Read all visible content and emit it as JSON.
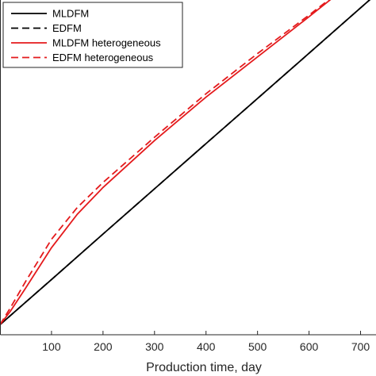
{
  "chart_data": {
    "type": "line",
    "title": "",
    "xlabel": "Production time, day",
    "ylabel": "",
    "xlim": [
      0,
      730
    ],
    "ylim": [
      0,
      1
    ],
    "xticks": [
      100,
      200,
      300,
      400,
      500,
      600,
      700
    ],
    "xtick_labels": [
      "100",
      "200",
      "300",
      "400",
      "500",
      "600",
      "700"
    ],
    "grid": false,
    "legend_position": "top-left",
    "series": [
      {
        "name": "MLDFM",
        "color": "#000000",
        "dash": "solid",
        "x": [
          0,
          100,
          200,
          300,
          400,
          500,
          600,
          730
        ],
        "y": [
          0.03,
          0.165,
          0.301,
          0.436,
          0.571,
          0.706,
          0.841,
          1.017
        ]
      },
      {
        "name": "EDFM",
        "color": "#000000",
        "dash": "dashed",
        "x": [
          0,
          100,
          200,
          300,
          400,
          500,
          600,
          730
        ],
        "y": [
          0.03,
          0.165,
          0.301,
          0.436,
          0.571,
          0.706,
          0.841,
          1.017
        ]
      },
      {
        "name": "MLDFM heterogeneous",
        "color": "#e41a1c",
        "dash": "solid",
        "x": [
          0,
          20,
          50,
          100,
          150,
          200,
          300,
          400,
          500,
          600,
          730
        ],
        "y": [
          0.03,
          0.07,
          0.14,
          0.26,
          0.36,
          0.44,
          0.58,
          0.71,
          0.83,
          0.95,
          1.11
        ]
      },
      {
        "name": "EDFM heterogeneous",
        "color": "#e41a1c",
        "dash": "dashed",
        "x": [
          0,
          20,
          50,
          100,
          150,
          200,
          300,
          400,
          500,
          600,
          730
        ],
        "y": [
          0.03,
          0.08,
          0.16,
          0.285,
          0.38,
          0.455,
          0.59,
          0.72,
          0.84,
          0.955,
          1.11
        ]
      }
    ]
  }
}
